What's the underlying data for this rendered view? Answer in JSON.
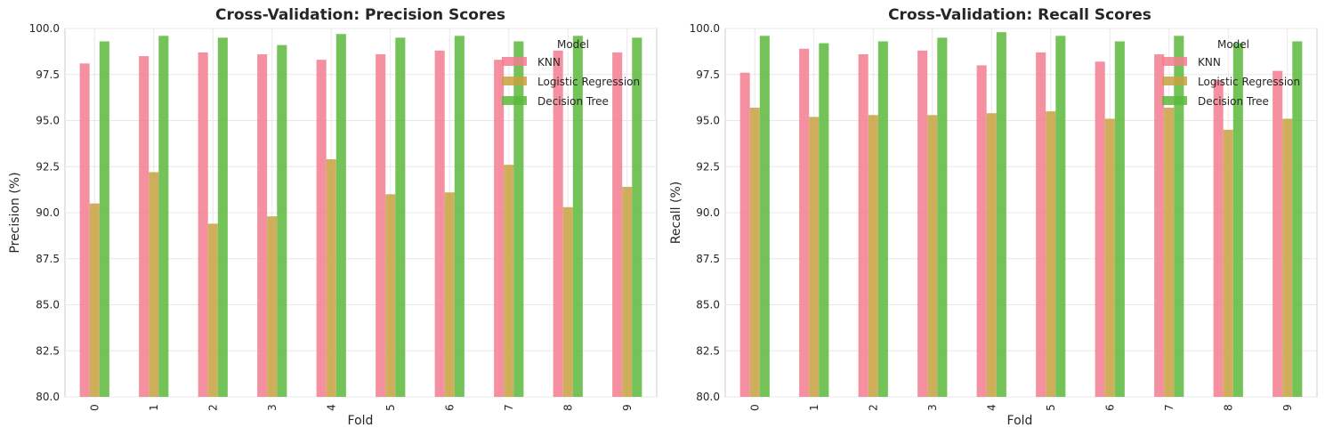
{
  "colors": {
    "knn": "#f37c8f",
    "logreg": "#c7a13f",
    "dtree": "#5cb83c",
    "grid": "#e8e8e8",
    "frame": "#cccccc"
  },
  "chart_data": [
    {
      "type": "bar",
      "title": "Cross-Validation: Precision Scores",
      "xlabel": "Fold",
      "ylabel": "Precision (%)",
      "ylim": [
        80.0,
        100.0
      ],
      "yticks": [
        "80.0",
        "82.5",
        "85.0",
        "87.5",
        "90.0",
        "92.5",
        "95.0",
        "97.5",
        "100.0"
      ],
      "categories": [
        "0",
        "1",
        "2",
        "3",
        "4",
        "5",
        "6",
        "7",
        "8",
        "9"
      ],
      "legend_title": "Model",
      "legend_position": "upper-right",
      "grid": true,
      "series": [
        {
          "name": "KNN",
          "values": [
            98.1,
            98.5,
            98.7,
            98.6,
            98.3,
            98.6,
            98.8,
            98.3,
            98.8,
            98.7
          ]
        },
        {
          "name": "Logistic Regression",
          "values": [
            90.5,
            92.2,
            89.4,
            89.8,
            92.9,
            91.0,
            91.1,
            92.6,
            90.3,
            91.4
          ]
        },
        {
          "name": "Decision Tree",
          "values": [
            99.3,
            99.6,
            99.5,
            99.1,
            99.7,
            99.5,
            99.6,
            99.3,
            99.6,
            99.5
          ]
        }
      ]
    },
    {
      "type": "bar",
      "title": "Cross-Validation: Recall Scores",
      "xlabel": "Fold",
      "ylabel": "Recall (%)",
      "ylim": [
        80.0,
        100.0
      ],
      "yticks": [
        "80.0",
        "82.5",
        "85.0",
        "87.5",
        "90.0",
        "92.5",
        "95.0",
        "97.5",
        "100.0"
      ],
      "categories": [
        "0",
        "1",
        "2",
        "3",
        "4",
        "5",
        "6",
        "7",
        "8",
        "9"
      ],
      "legend_title": "Model",
      "legend_position": "upper-right",
      "grid": true,
      "series": [
        {
          "name": "KNN",
          "values": [
            97.6,
            98.9,
            98.6,
            98.8,
            98.0,
            98.7,
            98.2,
            98.6,
            97.2,
            97.7
          ]
        },
        {
          "name": "Logistic Regression",
          "values": [
            95.7,
            95.2,
            95.3,
            95.3,
            95.4,
            95.5,
            95.1,
            95.7,
            94.5,
            95.1
          ]
        },
        {
          "name": "Decision Tree",
          "values": [
            99.6,
            99.2,
            99.3,
            99.5,
            99.8,
            99.6,
            99.3,
            99.6,
            99.2,
            99.3
          ]
        }
      ]
    }
  ]
}
